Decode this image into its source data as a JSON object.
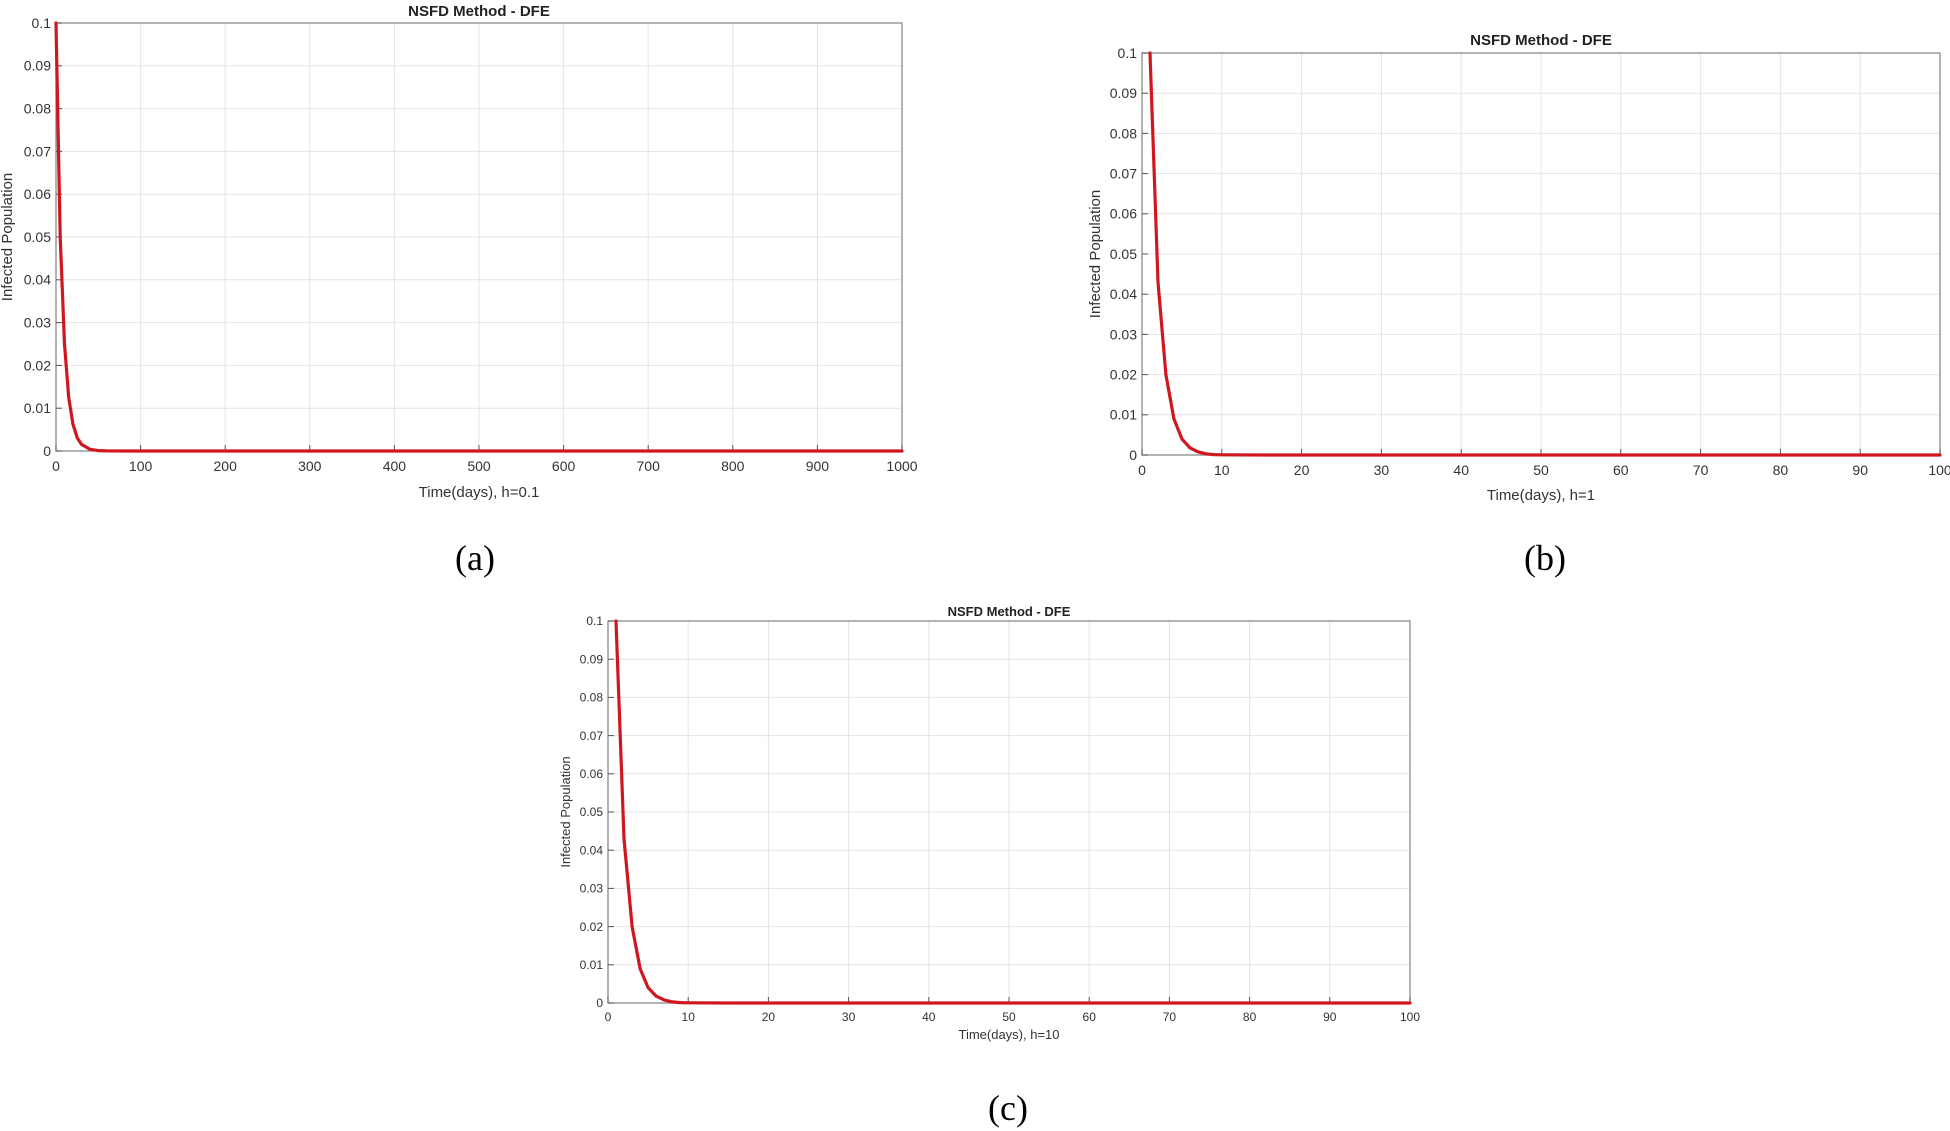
{
  "chart_data": [
    {
      "type": "line",
      "title": "NSFD Method - DFE",
      "xlabel": "Time(days), h=0.1",
      "ylabel": "Infected Population",
      "xlim": [
        0,
        1000
      ],
      "ylim": [
        0,
        0.1
      ],
      "x_ticks": [
        "0",
        "100",
        "200",
        "300",
        "400",
        "500",
        "600",
        "700",
        "800",
        "900",
        "1000"
      ],
      "y_ticks": [
        "0",
        "0.01",
        "0.02",
        "0.03",
        "0.04",
        "0.05",
        "0.06",
        "0.07",
        "0.08",
        "0.09",
        "0.1"
      ],
      "grid": true,
      "caption": "(a)",
      "series": [
        {
          "color": "#d0171f",
          "x": [
            0,
            5,
            10,
            15,
            20,
            25,
            30,
            40,
            50,
            60,
            80,
            100,
            200,
            400,
            600,
            800,
            1000
          ],
          "y": [
            0.1,
            0.05,
            0.025,
            0.0125,
            0.0063,
            0.0031,
            0.0016,
            0.0004,
            0.0001,
            2e-05,
            0,
            0,
            0,
            0,
            0,
            0,
            0
          ]
        }
      ]
    },
    {
      "type": "line",
      "title": "NSFD Method - DFE",
      "xlabel": "Time(days), h=1",
      "ylabel": "Infected Population",
      "xlim": [
        0,
        100
      ],
      "ylim": [
        0,
        0.1
      ],
      "x_ticks": [
        "0",
        "10",
        "20",
        "30",
        "40",
        "50",
        "60",
        "70",
        "80",
        "90",
        "100"
      ],
      "y_ticks": [
        "0",
        "0.01",
        "0.02",
        "0.03",
        "0.04",
        "0.05",
        "0.06",
        "0.07",
        "0.08",
        "0.09",
        "0.1"
      ],
      "grid": true,
      "caption": "(b)",
      "series": [
        {
          "color": "#d0171f",
          "x": [
            1,
            2,
            3,
            4,
            5,
            6,
            7,
            8,
            9,
            10,
            15,
            20,
            40,
            60,
            80,
            100
          ],
          "y": [
            0.1,
            0.043,
            0.02,
            0.009,
            0.004,
            0.0018,
            0.0008,
            0.0003,
            0.0001,
            5e-05,
            0,
            0,
            0,
            0,
            0,
            0
          ]
        }
      ]
    },
    {
      "type": "line",
      "title": "NSFD Method - DFE",
      "xlabel": "Time(days), h=10",
      "ylabel": "Infected Population",
      "xlim": [
        0,
        100
      ],
      "ylim": [
        0,
        0.1
      ],
      "x_ticks": [
        "0",
        "10",
        "20",
        "30",
        "40",
        "50",
        "60",
        "70",
        "80",
        "90",
        "100"
      ],
      "y_ticks": [
        "0",
        "0.01",
        "0.02",
        "0.03",
        "0.04",
        "0.05",
        "0.06",
        "0.07",
        "0.08",
        "0.09",
        "0.1"
      ],
      "grid": true,
      "caption": "(c)",
      "series": [
        {
          "color": "#d0171f",
          "x": [
            1,
            2,
            3,
            4,
            5,
            6,
            7,
            8,
            9,
            10,
            15,
            20,
            40,
            60,
            80,
            100
          ],
          "y": [
            0.1,
            0.043,
            0.02,
            0.009,
            0.004,
            0.0018,
            0.0008,
            0.0003,
            0.0001,
            5e-05,
            0,
            0,
            0,
            0,
            0,
            0
          ]
        }
      ]
    }
  ]
}
